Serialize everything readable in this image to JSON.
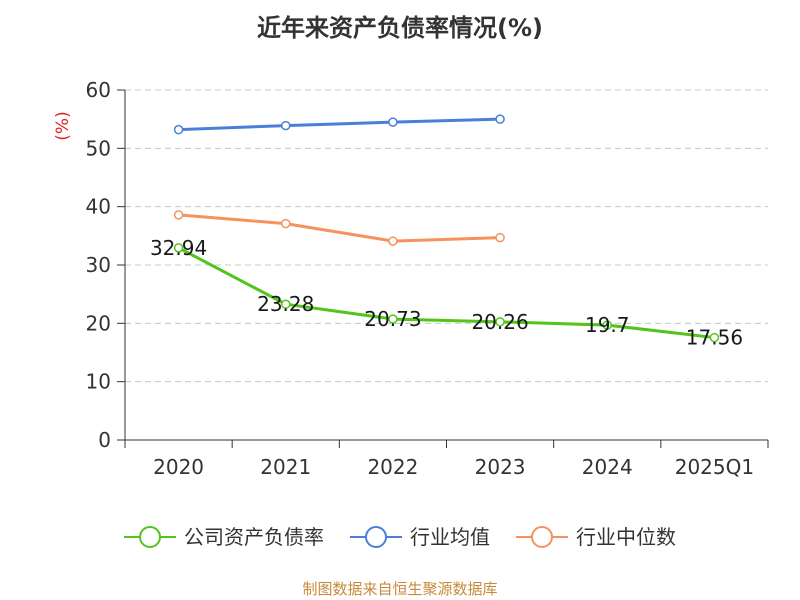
{
  "chart_data": {
    "type": "line",
    "title": "近年来资产负债率情况(%)",
    "ylabel": "(%)",
    "xlabel": "",
    "categories": [
      "2020",
      "2021",
      "2022",
      "2023",
      "2024",
      "2025Q1"
    ],
    "ylim": [
      0,
      60
    ],
    "yticks": [
      0,
      10,
      20,
      30,
      40,
      50,
      60
    ],
    "grid": true,
    "legend_position": "bottom",
    "series": [
      {
        "name": "公司资产负债率",
        "color": "#52c41a",
        "values": [
          32.94,
          23.28,
          20.73,
          20.26,
          19.7,
          17.56
        ],
        "labels": [
          "32.94",
          "23.28",
          "20.73",
          "20.26",
          "19.7",
          "17.56"
        ]
      },
      {
        "name": "行业均值",
        "color": "#4a7fd8",
        "values": [
          53.2,
          53.9,
          54.5,
          55.0,
          null,
          null
        ]
      },
      {
        "name": "行业中位数",
        "color": "#f5925e",
        "values": [
          38.6,
          37.1,
          34.1,
          34.7,
          null,
          null
        ]
      }
    ],
    "source": "制图数据来自恒生聚源数据库"
  }
}
